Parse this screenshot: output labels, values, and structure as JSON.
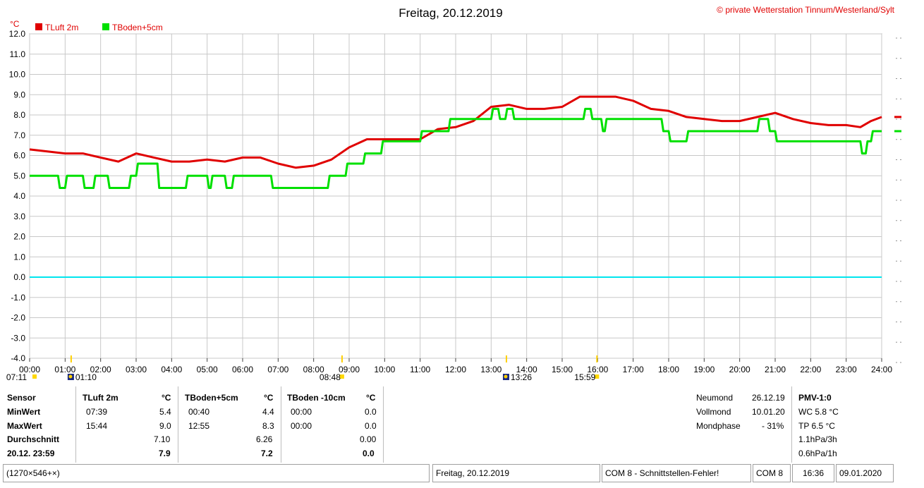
{
  "header": {
    "title": "Freitag, 20.12.2019",
    "copyright": "© private Wetterstation Tinnum/Westerland/Sylt",
    "unit": "°C"
  },
  "chart_data": {
    "type": "line",
    "title": "Freitag, 20.12.2019",
    "ylabel": "°C",
    "ylim": [
      -4.0,
      12.0
    ],
    "xlim": [
      0,
      24
    ],
    "y_ticks": [
      "12.0",
      "11.0",
      "10.0",
      "9.0",
      "8.0",
      "7.0",
      "6.0",
      "5.0",
      "4.0",
      "3.0",
      "2.0",
      "1.0",
      "0.0",
      "-1.0",
      "-2.0",
      "-3.0",
      "-4.0"
    ],
    "x_ticks": [
      "00:00",
      "01:00",
      "02:00",
      "03:00",
      "04:00",
      "05:00",
      "06:00",
      "07:00",
      "08:00",
      "09:00",
      "10:00",
      "11:00",
      "12:00",
      "13:00",
      "14:00",
      "15:00",
      "16:00",
      "17:00",
      "18:00",
      "19:00",
      "20:00",
      "21:00",
      "22:00",
      "23:00",
      "24:00"
    ],
    "zero_line_color": "#00e5ee",
    "grid": true,
    "legend_position": "top-left",
    "series": [
      {
        "name": "TLuft 2m",
        "color": "#e00000",
        "x": [
          0,
          0.5,
          1,
          1.5,
          2,
          2.5,
          3,
          3.5,
          4,
          4.5,
          5,
          5.5,
          6,
          6.5,
          7,
          7.5,
          8,
          8.5,
          9,
          9.5,
          10,
          10.5,
          11,
          11.5,
          12,
          12.5,
          13,
          13.5,
          14,
          14.5,
          15,
          15.5,
          16,
          16.5,
          17,
          17.5,
          18,
          18.5,
          19,
          19.5,
          20,
          20.5,
          21,
          21.5,
          22,
          22.5,
          23,
          23.4,
          23.7,
          24
        ],
        "y": [
          6.3,
          6.2,
          6.1,
          6.1,
          5.9,
          5.7,
          6.1,
          5.9,
          5.7,
          5.7,
          5.8,
          5.7,
          5.9,
          5.9,
          5.6,
          5.4,
          5.5,
          5.8,
          6.4,
          6.8,
          6.8,
          6.8,
          6.8,
          7.3,
          7.4,
          7.7,
          8.4,
          8.5,
          8.3,
          8.3,
          8.4,
          8.9,
          8.9,
          8.9,
          8.7,
          8.3,
          8.2,
          7.9,
          7.8,
          7.7,
          7.7,
          7.9,
          8.1,
          7.8,
          7.6,
          7.5,
          7.5,
          7.4,
          7.7,
          7.9
        ]
      },
      {
        "name": "TBoden+5cm",
        "color": "#00e000",
        "x": [
          0,
          0.8,
          0.85,
          1.0,
          1.05,
          1.5,
          1.55,
          1.8,
          1.85,
          2.2,
          2.25,
          2.8,
          2.85,
          3.0,
          3.05,
          3.6,
          3.65,
          4.3,
          4.35,
          4.4,
          4.45,
          5.0,
          5.05,
          5.1,
          5.15,
          5.5,
          5.55,
          5.7,
          5.75,
          6.8,
          6.85,
          8.4,
          8.45,
          8.9,
          8.95,
          9.4,
          9.45,
          9.9,
          9.95,
          11.0,
          11.05,
          11.8,
          11.85,
          12.3,
          12.35,
          13.0,
          13.05,
          13.2,
          13.25,
          13.4,
          13.45,
          13.6,
          13.65,
          13.9,
          13.95,
          15.6,
          15.65,
          15.8,
          15.85,
          16.1,
          16.15,
          16.2,
          16.25,
          17.8,
          17.85,
          18.0,
          18.05,
          18.5,
          18.55,
          18.7,
          18.75,
          20.5,
          20.55,
          20.8,
          20.85,
          21.0,
          21.05,
          23.4,
          23.45,
          23.55,
          23.6,
          23.7,
          23.75,
          24
        ],
        "y": [
          5.0,
          5.0,
          4.4,
          4.4,
          5.0,
          5.0,
          4.4,
          4.4,
          5.0,
          5.0,
          4.4,
          4.4,
          5.0,
          5.0,
          5.6,
          5.6,
          4.4,
          4.4,
          4.4,
          4.4,
          5.0,
          5.0,
          4.4,
          4.4,
          5.0,
          5.0,
          4.4,
          4.4,
          5.0,
          5.0,
          4.4,
          4.4,
          5.0,
          5.0,
          5.6,
          5.6,
          6.1,
          6.1,
          6.7,
          6.7,
          7.2,
          7.2,
          7.8,
          7.8,
          7.8,
          7.8,
          8.3,
          8.3,
          7.8,
          7.8,
          8.3,
          8.3,
          7.8,
          7.8,
          7.8,
          7.8,
          8.3,
          8.3,
          7.8,
          7.8,
          7.2,
          7.2,
          7.8,
          7.8,
          7.2,
          7.2,
          6.7,
          6.7,
          7.2,
          7.2,
          7.2,
          7.2,
          7.8,
          7.8,
          7.2,
          7.2,
          6.7,
          6.7,
          6.1,
          6.1,
          6.7,
          6.7,
          7.2,
          7.2
        ]
      },
      {
        "name": "TBoden -10cm",
        "color": "#00e5ee",
        "x": [
          0,
          24
        ],
        "y": [
          0.0,
          0.0
        ]
      }
    ],
    "time_markers": [
      {
        "time": "07:11",
        "x": 0.0
      },
      {
        "time": "01:10",
        "x": 1.17
      },
      {
        "time": "08:48",
        "x": 8.8
      },
      {
        "time": "13:26",
        "x": 13.43
      },
      {
        "time": "15:59",
        "x": 15.98
      }
    ]
  },
  "legend": {
    "tluft": "TLuft 2m",
    "tboden": "TBoden+5cm"
  },
  "table": {
    "rows_labels": [
      "Sensor",
      "MinWert",
      "MaxWert",
      "Durchschnitt",
      "20.12. 23:59"
    ],
    "tluft": {
      "name": "TLuft 2m",
      "unit": "°C",
      "min_time": "07:39",
      "min_val": "5.4",
      "max_time": "15:44",
      "max_val": "9.0",
      "avg": "7.10",
      "current": "7.9"
    },
    "tboden5": {
      "name": "TBoden+5cm",
      "unit": "°C",
      "min_time": "00:40",
      "min_val": "4.4",
      "max_time": "12:55",
      "max_val": "8.3",
      "avg": "6.26",
      "current": "7.2"
    },
    "tboden10": {
      "name": "TBoden -10cm",
      "unit": "°C",
      "min_time": "00:00",
      "min_val": "0.0",
      "max_time": "00:00",
      "max_val": "0.0",
      "avg": "0.00",
      "current": "0.0"
    }
  },
  "moon": {
    "neumond_label": "Neumond",
    "neumond": "26.12.19",
    "vollmond_label": "Vollmond",
    "vollmond": "10.01.20",
    "phase_label": "Mondphase",
    "phase": "- 31%"
  },
  "pmv": {
    "title": "PMV-1:0",
    "wc": "WC 5.8 °C",
    "tp": "TP 6.5 °C",
    "p3h": "1.1hPa/3h",
    "p1h": "0.6hPa/1h"
  },
  "statusbar": {
    "size": "(1270×546+×)",
    "date": "Freitag, 20.12.2019",
    "error": "COM 8 - Schnittstellen-Fehler!",
    "port": "COM 8",
    "time": "16:36",
    "today": "09.01.2020"
  }
}
